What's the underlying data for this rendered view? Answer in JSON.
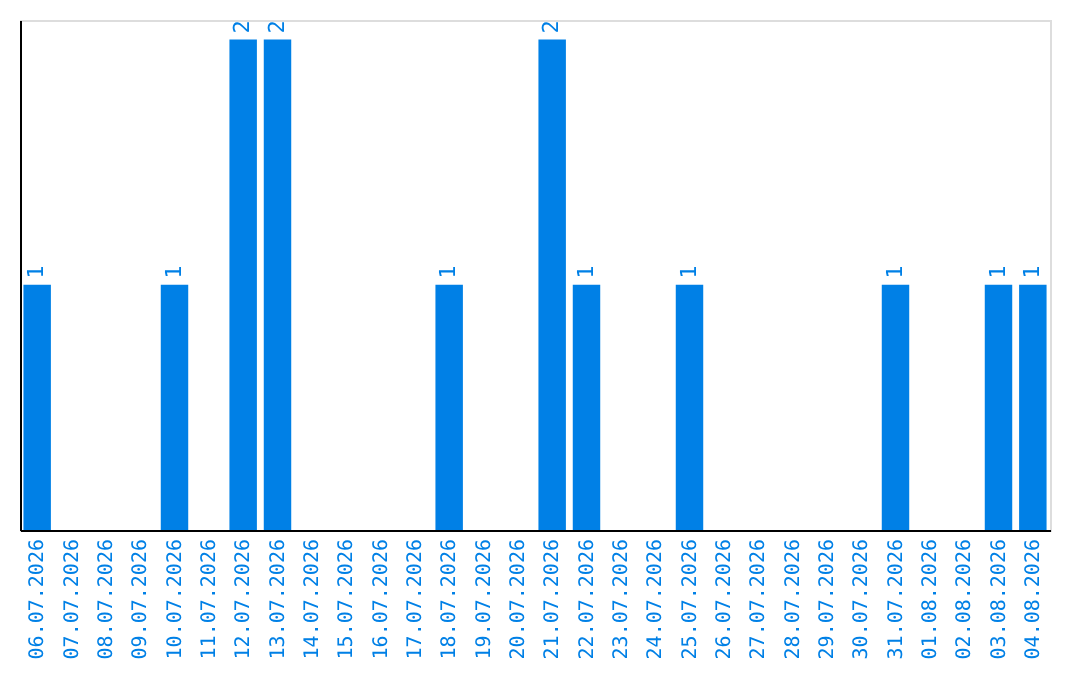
{
  "chart_data": {
    "type": "bar",
    "categories": [
      "06.07.2026",
      "07.07.2026",
      "08.07.2026",
      "09.07.2026",
      "10.07.2026",
      "11.07.2026",
      "12.07.2026",
      "13.07.2026",
      "14.07.2026",
      "15.07.2026",
      "16.07.2026",
      "17.07.2026",
      "18.07.2026",
      "19.07.2026",
      "20.07.2026",
      "21.07.2026",
      "22.07.2026",
      "23.07.2026",
      "24.07.2026",
      "25.07.2026",
      "26.07.2026",
      "27.07.2026",
      "28.07.2026",
      "29.07.2026",
      "30.07.2026",
      "31.07.2026",
      "01.08.2026",
      "02.08.2026",
      "03.08.2026",
      "04.08.2026"
    ],
    "values": [
      1,
      0,
      0,
      0,
      1,
      0,
      2,
      2,
      0,
      0,
      0,
      0,
      1,
      0,
      0,
      2,
      1,
      0,
      0,
      1,
      0,
      0,
      0,
      0,
      0,
      1,
      0,
      0,
      1,
      1
    ],
    "value_labels": [
      "1",
      null,
      null,
      null,
      "1",
      null,
      "2",
      "2",
      null,
      null,
      null,
      null,
      "1",
      null,
      null,
      "2",
      "1",
      null,
      null,
      "1",
      null,
      null,
      null,
      null,
      null,
      "1",
      null,
      null,
      "1",
      "1"
    ],
    "color": "#0080e6",
    "ylim": [
      0,
      2.08
    ],
    "tick_labels": "x",
    "grid": false
  }
}
